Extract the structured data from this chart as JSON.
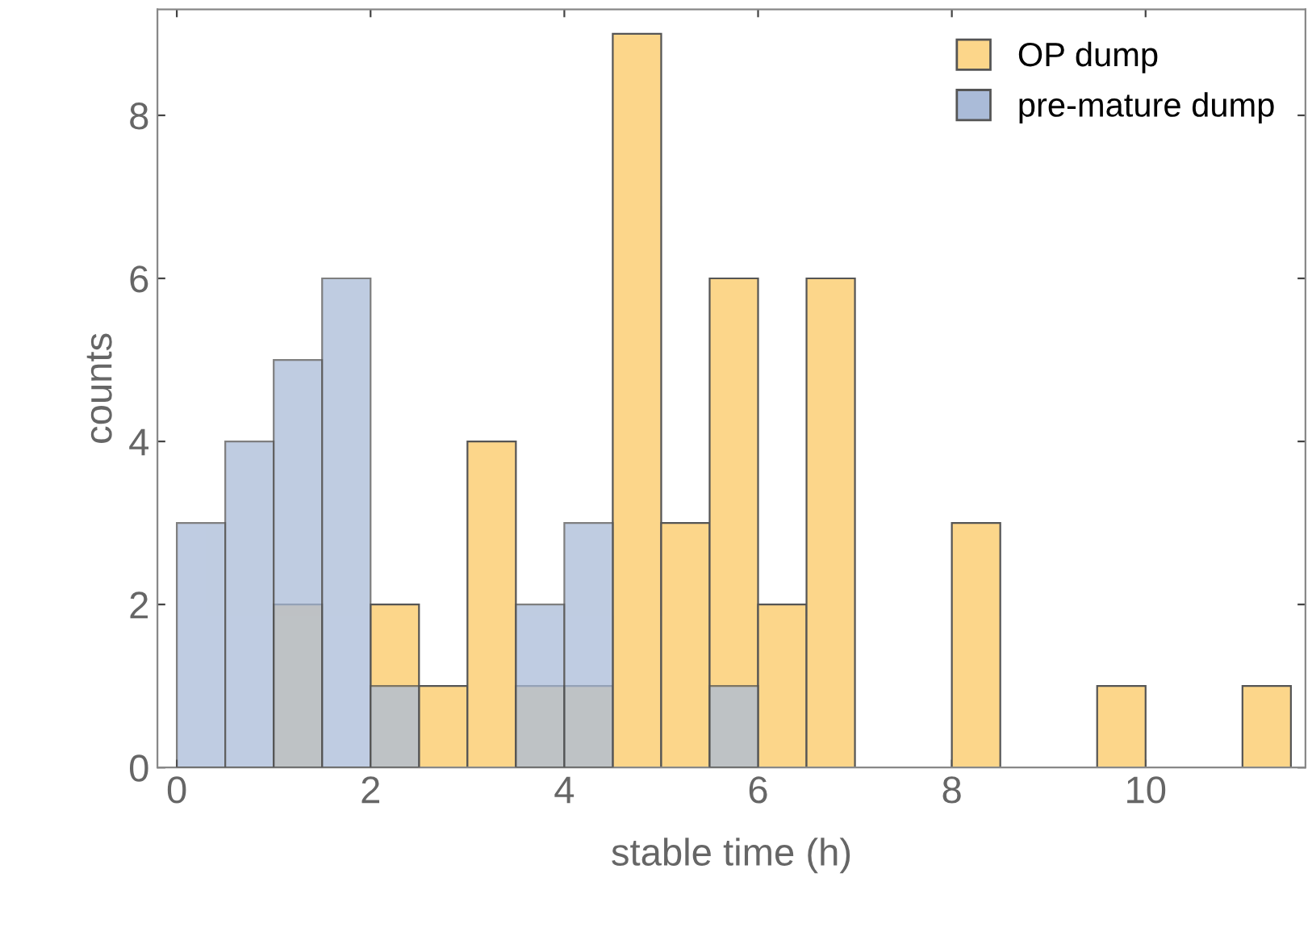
{
  "chart_data": {
    "type": "histogram",
    "xlabel": "stable time (h)",
    "ylabel": "counts",
    "bins": [
      0,
      0.5,
      1,
      1.5,
      2,
      2.5,
      3,
      3.5,
      4,
      4.5,
      5,
      5.5,
      6,
      6.5,
      7,
      7.5,
      8,
      8.5,
      9,
      9.5,
      10,
      10.5,
      11,
      11.5
    ],
    "series": [
      {
        "name": "OP dump",
        "color": "#fcd68a",
        "values": [
          0,
          0,
          2,
          0,
          2,
          1,
          4,
          1,
          1,
          9,
          3,
          6,
          2,
          6,
          0,
          0,
          3,
          0,
          0,
          1,
          0,
          0,
          1
        ]
      },
      {
        "name": "pre-mature dump",
        "color": "#aabbd8",
        "values": [
          3,
          4,
          5,
          6,
          1,
          0,
          0,
          2,
          3,
          0,
          0,
          1,
          0,
          0,
          0,
          0,
          0,
          0,
          0,
          0,
          0,
          0,
          0
        ]
      }
    ],
    "xlim": [
      -0.2,
      11.65
    ],
    "ylim": [
      0,
      9.3
    ],
    "xticks": [
      0,
      2,
      4,
      6,
      8,
      10
    ],
    "yticks": [
      0,
      2,
      4,
      6,
      8
    ],
    "legend": "top right",
    "grid": false
  }
}
